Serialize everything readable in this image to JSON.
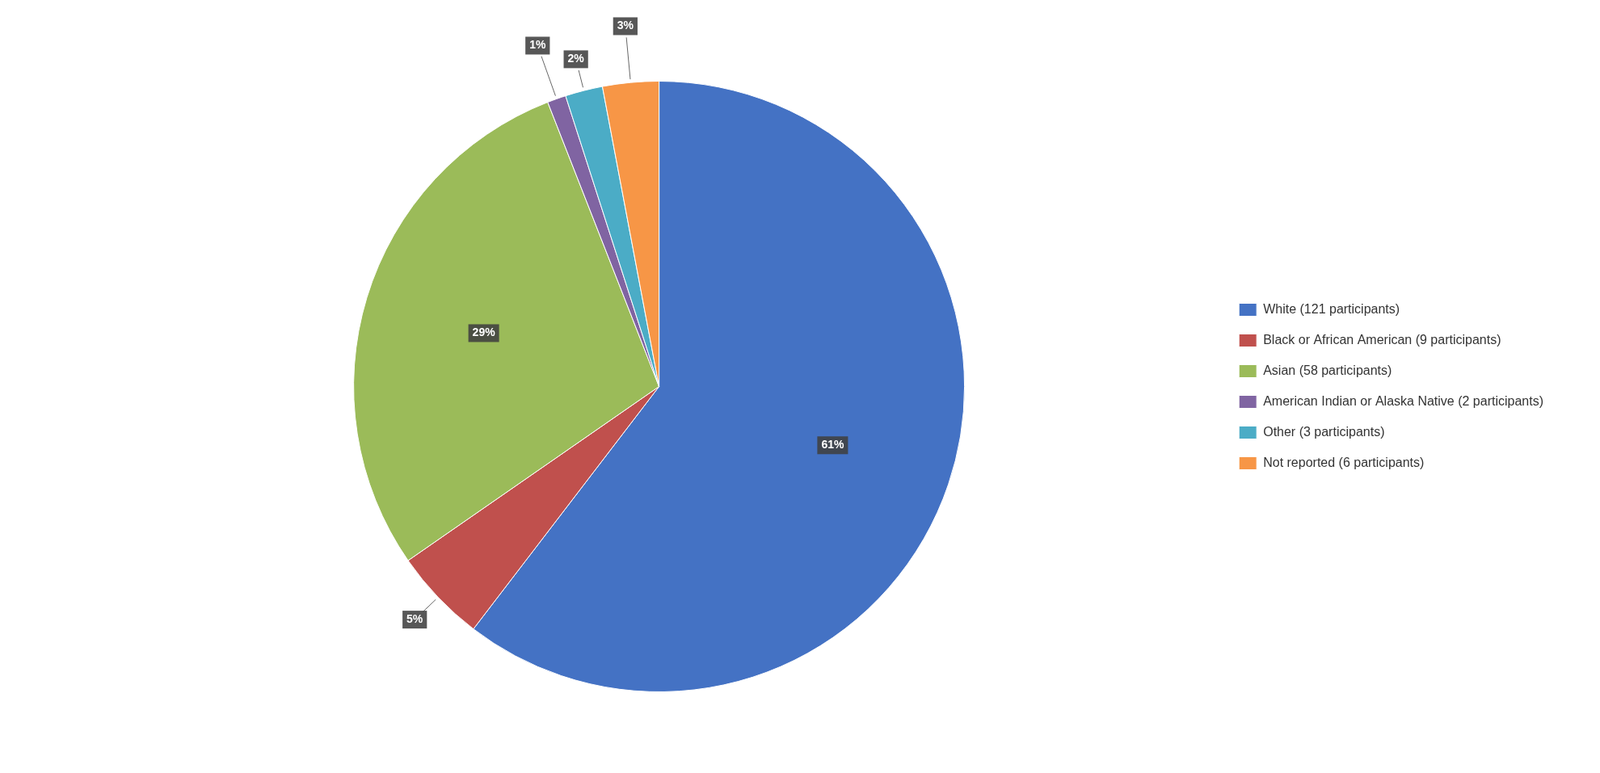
{
  "chart_data": {
    "type": "pie",
    "categories": [
      "White (121 participants)",
      "Black or African American (9 participants)",
      "Asian (58 participants)",
      "American Indian or Alaska Native (2 participants)",
      "Other (3 participants)",
      "Not reported (6 participants)"
    ],
    "values": [
      61,
      5,
      29,
      1,
      2,
      3
    ],
    "value_labels": [
      "61%",
      "5%",
      "29%",
      "1%",
      "2%",
      "3%"
    ],
    "colors": [
      "#4472C4",
      "#C0504D",
      "#9BBB59",
      "#8064A2",
      "#4BACC6",
      "#F79646"
    ],
    "legend": "right",
    "data_labels": true
  }
}
